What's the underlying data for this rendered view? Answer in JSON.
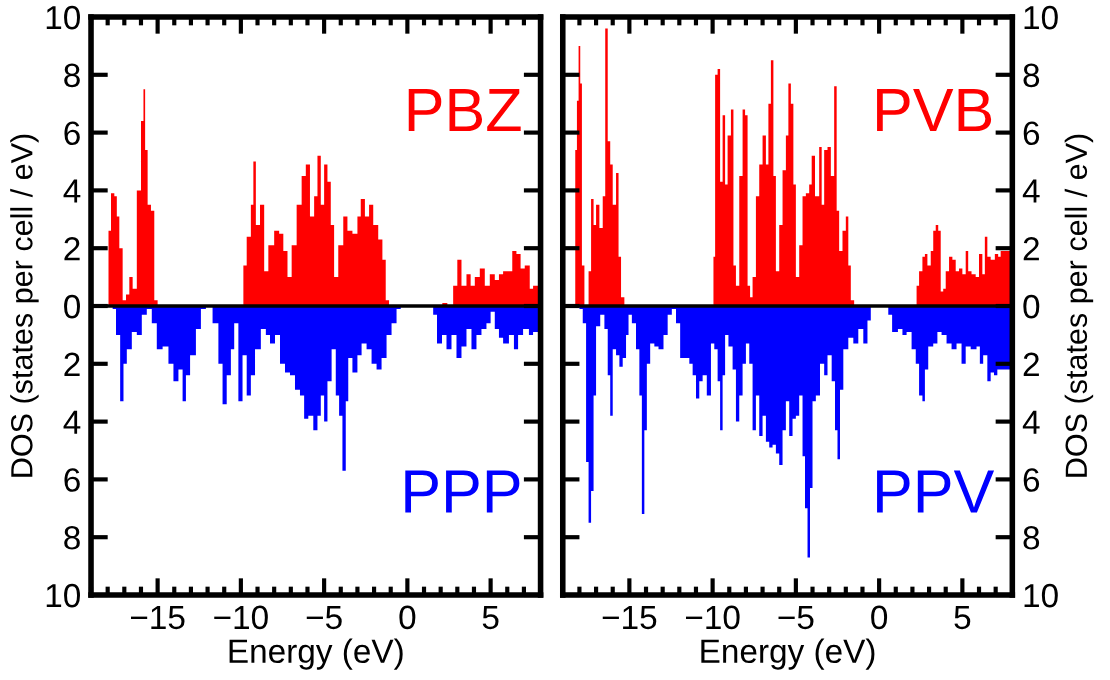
{
  "chart_data": [
    {
      "type": "area",
      "xlabel": "Energy (eV)",
      "ylabel": "DOS (states per cell / eV)",
      "xlim": [
        -19,
        8
      ],
      "ylim": [
        -10,
        10
      ],
      "xticks": [
        {
          "value": -15,
          "label": "−15"
        },
        {
          "value": -10,
          "label": "−10"
        },
        {
          "value": -5,
          "label": "−5"
        },
        0,
        5
      ],
      "yticks": [
        {
          "value": -10,
          "label": "10"
        },
        {
          "value": -8,
          "label": "8"
        },
        {
          "value": -6,
          "label": "6"
        },
        {
          "value": -4,
          "label": "4"
        },
        {
          "value": -2,
          "label": "2"
        },
        0,
        2,
        4,
        6,
        8,
        10
      ],
      "grid": false,
      "legend": false,
      "ref_lines": [
        {
          "axis": "y",
          "value": 0,
          "color": "#000000"
        }
      ],
      "series": [
        {
          "name": "PBZ",
          "color": "#ff0000",
          "x": [
            -18.0,
            -17.9,
            -17.7,
            -17.5,
            -17.4,
            -17.2,
            -17.0,
            -16.8,
            -16.6,
            -16.4,
            -16.1,
            -15.9,
            -15.8,
            -15.7,
            -15.5,
            -15.3,
            -15.1,
            -14.9,
            -9.9,
            -9.8,
            -9.5,
            -9.3,
            -9.2,
            -9.0,
            -8.7,
            -8.5,
            -8.2,
            -7.8,
            -7.6,
            -7.3,
            -7.1,
            -6.8,
            -6.5,
            -6.2,
            -6.0,
            -5.7,
            -5.5,
            -5.3,
            -5.1,
            -4.9,
            -4.7,
            -4.5,
            -4.3,
            -4.0,
            -3.7,
            -3.5,
            -3.1,
            -2.9,
            -2.7,
            -2.4,
            -2.2,
            -1.9,
            -1.6,
            -1.4,
            -1.2,
            -1.0,
            2.0,
            2.2,
            2.6,
            2.9,
            3.1,
            3.4,
            3.7,
            3.9,
            4.2,
            4.5,
            4.8,
            5.1,
            5.4,
            5.6,
            5.9,
            6.2,
            6.4,
            6.7,
            6.9,
            7.2,
            7.5,
            7.6,
            8.0
          ],
          "values": [
            0,
            2.6,
            3.9,
            3.8,
            3.1,
            2.0,
            0.2,
            0.4,
            1.0,
            0.6,
            4.0,
            6.4,
            7.5,
            5.4,
            3.5,
            3.3,
            0.2,
            0,
            0,
            1.4,
            2.4,
            3.5,
            5.0,
            2.8,
            3.5,
            1.2,
            2.1,
            2.6,
            2.5,
            1.9,
            1.0,
            2.1,
            3.5,
            4.5,
            4.9,
            3.1,
            3.8,
            5.2,
            3.5,
            4.9,
            4.3,
            2.8,
            1.0,
            2.1,
            3.1,
            2.6,
            2.5,
            3.1,
            3.7,
            3.1,
            3.5,
            2.8,
            2.3,
            1.6,
            0.2,
            0,
            0,
            0.1,
            0,
            0.7,
            1.6,
            0.7,
            1.1,
            0.7,
            1.0,
            1.3,
            0.7,
            1.1,
            0.9,
            1.1,
            1.2,
            1.2,
            1.9,
            1.8,
            1.3,
            1.4,
            0.6,
            0.7,
            0.7
          ]
        },
        {
          "name": "PPP",
          "color": "#0000ff",
          "x": [
            -17.8,
            -17.6,
            -17.4,
            -17.1,
            -17.0,
            -16.7,
            -16.4,
            -16.1,
            -15.8,
            -15.5,
            -15.2,
            -14.9,
            -14.5,
            -14.2,
            -13.9,
            -13.6,
            -13.4,
            -13.2,
            -12.9,
            -12.5,
            -12.3,
            -11.9,
            -11.5,
            -11.2,
            -11.0,
            -10.7,
            -10.5,
            -10.3,
            -10.0,
            -9.8,
            -9.5,
            -9.3,
            -9.0,
            -8.6,
            -8.4,
            -8.1,
            -7.8,
            -7.5,
            -7.2,
            -6.9,
            -6.6,
            -6.3,
            -6.1,
            -5.8,
            -5.5,
            -5.3,
            -5.1,
            -4.9,
            -4.7,
            -4.4,
            -4.2,
            -4.0,
            -3.8,
            -3.6,
            -3.5,
            -3.1,
            -2.9,
            -2.6,
            -2.3,
            -2.0,
            -1.7,
            -1.4,
            -1.1,
            -0.8,
            -0.5,
            -0.3,
            1.5,
            1.6,
            1.96,
            2.2,
            2.5,
            2.8,
            3.1,
            3.4,
            3.7,
            4.0,
            4.3,
            4.6,
            4.9,
            5.1,
            5.4,
            5.6,
            5.9,
            6.3,
            6.5,
            6.8,
            7.1,
            7.5,
            7.6,
            8.0
          ],
          "values": [
            0,
            -0.1,
            -1.0,
            -3.3,
            -2.0,
            -1.5,
            -0.9,
            -1.0,
            -0.3,
            -0.1,
            -0.6,
            -1.5,
            -1.4,
            -2.0,
            -2.6,
            -2.2,
            -3.3,
            -2.4,
            -1.7,
            -0.8,
            -0.1,
            0,
            -0.6,
            -2.0,
            -3.4,
            -2.4,
            -1.5,
            -0.6,
            -3.3,
            -1.7,
            -3.1,
            -2.4,
            -1.5,
            -0.8,
            -1.0,
            -1.3,
            -1.0,
            -2.0,
            -2.3,
            -2.4,
            -2.9,
            -3.1,
            -3.9,
            -3.8,
            -4.3,
            -3.8,
            -3.1,
            -4.0,
            -2.6,
            -1.5,
            -3.1,
            -3.8,
            -5.7,
            -3.3,
            -1.8,
            -2.3,
            -1.7,
            -1.3,
            -1.5,
            -2.0,
            -2.2,
            -1.8,
            -1.0,
            -0.6,
            -0.1,
            0,
            0,
            -0.3,
            -1.3,
            -1.0,
            -1.5,
            -1.0,
            -1.8,
            -1.4,
            -0.8,
            -1.5,
            -1.0,
            -0.8,
            -0.6,
            -0.2,
            -0.8,
            -1.1,
            -1.3,
            -1.0,
            -1.5,
            -1.0,
            -0.8,
            -1.0,
            -0.9,
            -0.9
          ]
        }
      ]
    },
    {
      "type": "area",
      "xlabel": "Energy (eV)",
      "ylabel": "DOS (states per cell / eV)",
      "xlim": [
        -19,
        8
      ],
      "ylim": [
        -10,
        10
      ],
      "xticks": [
        {
          "value": -15,
          "label": "−15"
        },
        {
          "value": -10,
          "label": "−10"
        },
        {
          "value": -5,
          "label": "−5"
        },
        0,
        5
      ],
      "yticks": [
        {
          "value": -10,
          "label": "10"
        },
        {
          "value": -8,
          "label": "8"
        },
        {
          "value": -6,
          "label": "6"
        },
        {
          "value": -4,
          "label": "4"
        },
        {
          "value": -2,
          "label": "2"
        },
        0,
        2,
        4,
        6,
        8,
        10
      ],
      "grid": false,
      "legend": false,
      "ref_lines": [
        {
          "axis": "y",
          "value": 0,
          "color": "#000000"
        }
      ],
      "series": [
        {
          "name": "PVB",
          "color": "#ff0000",
          "x": [
            -18.3,
            -18.2,
            -18.1,
            -18.0,
            -17.9,
            -17.8,
            -17.6,
            -17.5,
            -17.4,
            -17.2,
            -17.1,
            -16.9,
            -16.7,
            -16.5,
            -16.4,
            -16.2,
            -16.1,
            -15.9,
            -15.7,
            -15.6,
            -15.4,
            -15.2,
            -10.0,
            -9.9,
            -9.8,
            -9.6,
            -9.5,
            -9.3,
            -9.2,
            -9.0,
            -8.8,
            -8.7,
            -8.5,
            -8.3,
            -8.1,
            -8.0,
            -7.8,
            -7.7,
            -7.5,
            -7.3,
            -7.1,
            -6.9,
            -6.7,
            -6.6,
            -6.4,
            -6.3,
            -6.1,
            -5.9,
            -5.7,
            -5.5,
            -5.4,
            -5.2,
            -5.1,
            -4.9,
            -4.7,
            -4.5,
            -4.3,
            -4.1,
            -4.0,
            -3.7,
            -3.5,
            -3.4,
            -3.2,
            -3.0,
            -2.8,
            -2.6,
            -2.5,
            -2.3,
            -2.1,
            -1.9,
            -1.8,
            -1.6,
            -1.4,
            2.2,
            2.3,
            2.5,
            2.7,
            2.8,
            3.0,
            3.2,
            3.3,
            3.5,
            3.6,
            3.8,
            3.9,
            4.1,
            4.3,
            4.5,
            4.7,
            4.9,
            5.1,
            5.3,
            5.4,
            5.7,
            5.9,
            6.1,
            6.3,
            6.4,
            6.6,
            6.8,
            7.1,
            7.2,
            7.4,
            8.0
          ],
          "values": [
            0,
            5.4,
            7.1,
            9.0,
            7.7,
            1.4,
            0,
            0,
            1.2,
            3.7,
            2.8,
            3.5,
            2.7,
            3.8,
            9.6,
            5.7,
            4.9,
            3.5,
            4.6,
            1.7,
            0.3,
            0,
            0,
            1.7,
            8.0,
            8.2,
            4.3,
            6.6,
            4.2,
            5.9,
            6.8,
            1.4,
            0.7,
            4.5,
            6.8,
            6.6,
            0.7,
            0.3,
            1.0,
            3.8,
            4.9,
            5.9,
            4.9,
            7.0,
            8.5,
            4.5,
            1.2,
            2.8,
            4.7,
            5.9,
            7.7,
            7.0,
            4.2,
            1.0,
            2.1,
            3.8,
            3.9,
            4.2,
            5.2,
            3.8,
            5.5,
            3.5,
            5.4,
            5.5,
            4.5,
            7.6,
            3.3,
            1.9,
            2.6,
            3.1,
            1.4,
            0.2,
            0,
            0,
            0.7,
            1.2,
            1.7,
            1.8,
            1.4,
            1.9,
            2.6,
            2.8,
            2.6,
            0.5,
            0.6,
            1.2,
            1.7,
            1.6,
            1.2,
            1.3,
            1.1,
            1.9,
            1.2,
            1.1,
            1.0,
            1.8,
            1.1,
            2.4,
            1.7,
            1.6,
            1.8,
            1.7,
            1.9,
            1.9
          ]
        },
        {
          "name": "PPV",
          "color": "#0000ff",
          "x": [
            -18.1,
            -17.9,
            -17.7,
            -17.5,
            -17.4,
            -17.2,
            -17.1,
            -16.9,
            -16.6,
            -16.4,
            -16.2,
            -16.1,
            -15.9,
            -15.7,
            -15.5,
            -15.3,
            -15.1,
            -15.0,
            -14.7,
            -14.5,
            -14.3,
            -14.2,
            -14.0,
            -13.9,
            -13.6,
            -13.4,
            -13.1,
            -12.8,
            -12.6,
            -12.3,
            -12.1,
            -11.8,
            -11.5,
            -11.3,
            -11.1,
            -10.9,
            -10.7,
            -10.5,
            -10.2,
            -10.0,
            -9.8,
            -9.6,
            -9.5,
            -9.3,
            -9.2,
            -8.9,
            -8.7,
            -8.5,
            -8.3,
            -8.1,
            -7.9,
            -7.7,
            -7.5,
            -7.3,
            -7.1,
            -6.9,
            -6.7,
            -6.5,
            -6.3,
            -6.1,
            -5.9,
            -5.7,
            -5.5,
            -5.3,
            -5.1,
            -4.9,
            -4.7,
            -4.5,
            -4.4,
            -4.2,
            -4.1,
            -3.9,
            -3.7,
            -3.4,
            -3.2,
            -3.0,
            -2.7,
            -2.6,
            -2.4,
            -2.3,
            -2.0,
            -1.7,
            -1.4,
            -1.1,
            -0.8,
            -0.6,
            -0.4,
            0.5,
            0.6,
            0.96,
            1.3,
            1.5,
            1.8,
            2.1,
            2.3,
            2.5,
            2.7,
            2.8,
            3.1,
            3.4,
            3.6,
            3.9,
            4.2,
            4.5,
            4.8,
            5.1,
            5.3,
            5.7,
            6.0,
            6.1,
            6.4,
            6.6,
            6.8,
            7.0,
            7.2,
            7.4,
            8.0
          ],
          "values": [
            0,
            -0.1,
            -0.6,
            -5.4,
            -7.5,
            -6.4,
            -3.1,
            -0.7,
            -0.3,
            -0.8,
            -2.4,
            -3.8,
            -1.5,
            -1.7,
            -2.1,
            -1.8,
            -1.0,
            -0.3,
            -0.6,
            -1.5,
            -3.1,
            -7.2,
            -4.3,
            -2.0,
            -1.3,
            -1.4,
            -1.5,
            -1.0,
            -0.3,
            -0.1,
            -0.6,
            -1.8,
            -1.8,
            -2.0,
            -2.4,
            -3.2,
            -2.6,
            -2.4,
            -3.1,
            -1.3,
            -1.5,
            -2.6,
            -4.3,
            -2.4,
            -1.0,
            -1.4,
            -2.2,
            -4.0,
            -3.1,
            -2.0,
            -1.3,
            -2.0,
            -4.3,
            -3.1,
            -4.5,
            -3.8,
            -4.7,
            -4.9,
            -4.8,
            -5.1,
            -5.5,
            -4.3,
            -3.3,
            -4.5,
            -3.9,
            -3.8,
            -3.1,
            -5.2,
            -7.0,
            -8.7,
            -6.3,
            -3.3,
            -3.1,
            -2.0,
            -2.4,
            -1.7,
            -2.6,
            -4.3,
            -5.3,
            -2.9,
            -1.5,
            -1.1,
            -1.3,
            -0.8,
            -1.3,
            -0.5,
            0,
            0,
            -0.3,
            -0.9,
            -0.8,
            -1.0,
            -0.9,
            -1.5,
            -2.0,
            -3.1,
            -3.3,
            -2.2,
            -1.4,
            -1.3,
            -0.9,
            -1.0,
            -1.3,
            -1.5,
            -1.3,
            -2.0,
            -1.4,
            -1.5,
            -1.4,
            -2.0,
            -1.7,
            -2.6,
            -2.3,
            -2.4,
            -2.2,
            -2.2,
            -2.2
          ]
        }
      ]
    }
  ]
}
